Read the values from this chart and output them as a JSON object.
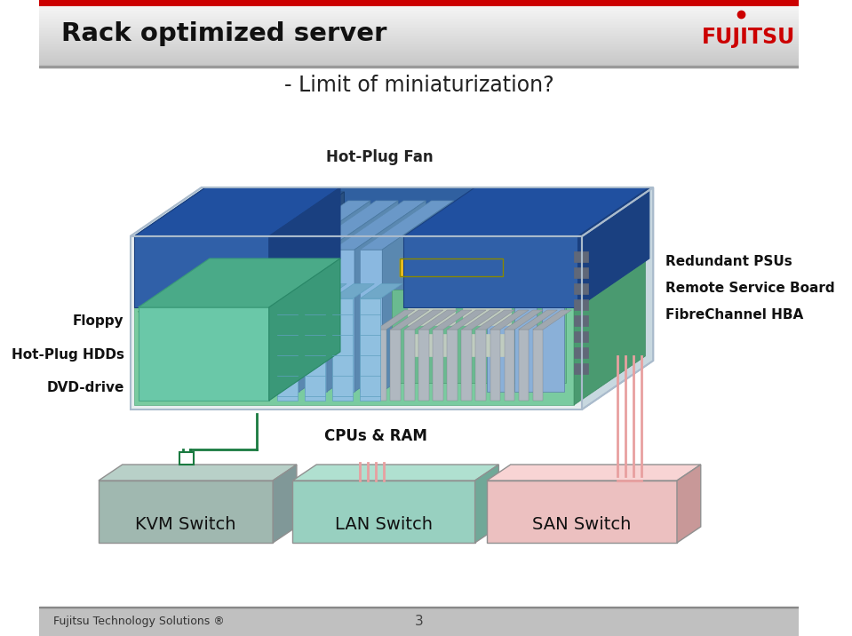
{
  "title": "Rack optimized server",
  "subtitle": "- Limit of miniaturization?",
  "bg_color": "#ffffff",
  "header_red_bar": "#cc0000",
  "footer_text": "Fujitsu Technology Solutions ®",
  "footer_page": "3",
  "footer_bg": "#b8b8b8",
  "labels_left": [
    "Floppy",
    "Hot-Plug HDDs",
    "DVD-drive"
  ],
  "labels_right": [
    "Redundant PSUs",
    "Remote Service Board",
    "FibreChannel HBA"
  ],
  "label_top": "Hot-Plug Fan",
  "label_bottom": "CPUs & RAM",
  "green_line_color": "#1a7a40",
  "pink_line_color": "#e8a0a0"
}
